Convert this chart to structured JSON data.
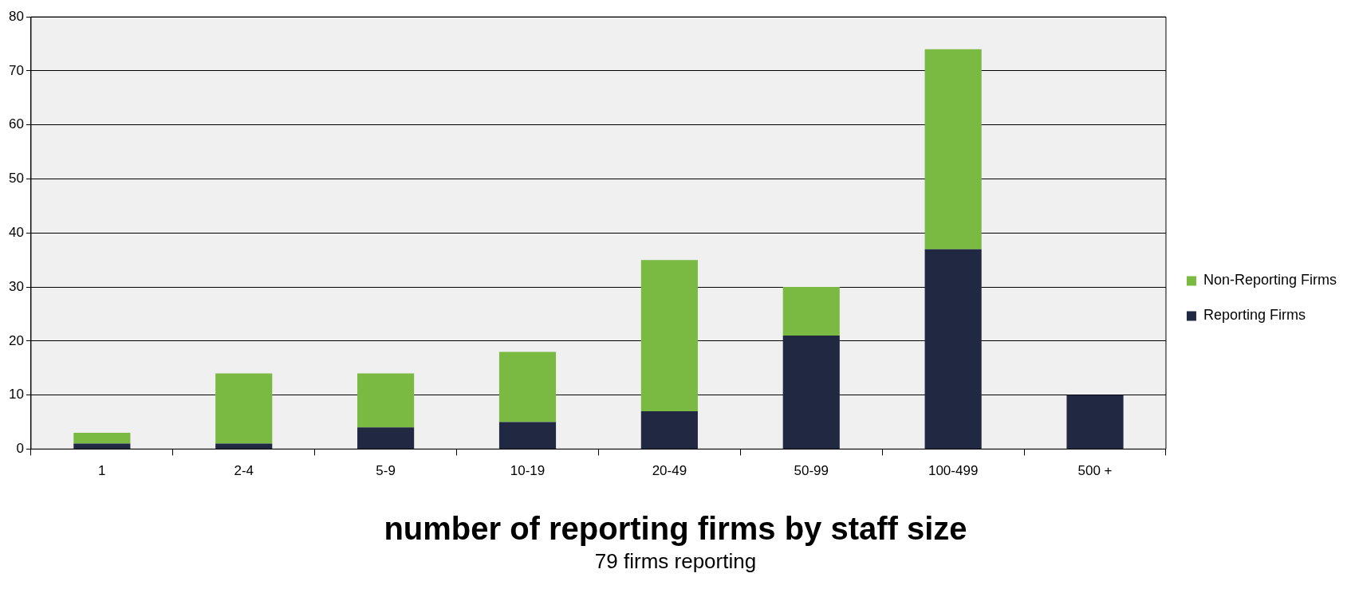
{
  "chart_data": {
    "type": "bar",
    "title": "number of reporting firms by staff size",
    "subtitle": "79 firms reporting",
    "categories": [
      "1",
      "2-4",
      "5-9",
      "10-19",
      "20-49",
      "50-99",
      "100-499",
      "500 +"
    ],
    "stacked": true,
    "series": [
      {
        "name": "Reporting Firms",
        "color": "#212842",
        "values": [
          1,
          1,
          4,
          5,
          7,
          21,
          37,
          10
        ]
      },
      {
        "name": "Non-Reporting Firms",
        "color": "#7aba43",
        "values": [
          2,
          13,
          10,
          13,
          28,
          9,
          37,
          0
        ]
      }
    ],
    "ylim": [
      0,
      80
    ],
    "yticks": [
      0,
      10,
      20,
      30,
      40,
      50,
      60,
      70,
      80
    ],
    "grid": "y",
    "legend": "right"
  }
}
